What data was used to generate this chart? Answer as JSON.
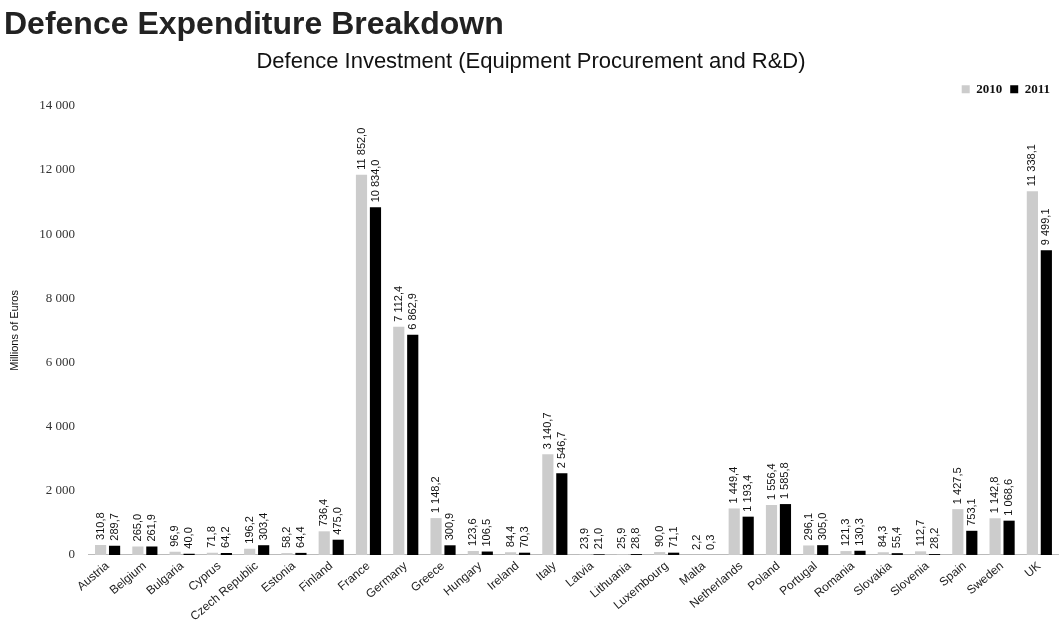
{
  "chart_data": {
    "type": "bar",
    "title": "Defence Expenditure Breakdown",
    "subtitle": "Defence Investment (Equipment Procurement and R&D)",
    "ylabel": "Millions of Euros",
    "categories": [
      "Austria",
      "Belgium",
      "Bulgaria",
      "Cyprus",
      "Czech Republic",
      "Estonia",
      "Finland",
      "France",
      "Germany",
      "Greece",
      "Hungary",
      "Ireland",
      "Italy",
      "Latvia",
      "Lithuania",
      "Luxembourg",
      "Malta",
      "Netherlands",
      "Poland",
      "Portugal",
      "Romania",
      "Slovakia",
      "Slovenia",
      "Spain",
      "Sweden",
      "UK"
    ],
    "series": [
      {
        "name": "2010",
        "color": "#cccccc",
        "values": [
          310.8,
          265.0,
          96.9,
          71.8,
          196.2,
          58.2,
          736.4,
          11852.0,
          7112.4,
          1148.2,
          123.6,
          84.4,
          3140.7,
          23.9,
          25.9,
          90.0,
          2.2,
          1449.4,
          1556.4,
          296.1,
          121.3,
          84.3,
          112.7,
          1427.5,
          1142.8,
          11338.1
        ],
        "value_labels": [
          "310,8",
          "265,0",
          "96,9",
          "71,8",
          "196,2",
          "58,2",
          "736,4",
          "11 852,0",
          "7 112,4",
          "1 148,2",
          "123,6",
          "84,4",
          "3 140,7",
          "23,9",
          "25,9",
          "90,0",
          "2,2",
          "1 449,4",
          "1 556,4",
          "296,1",
          "121,3",
          "84,3",
          "112,7",
          "1 427,5",
          "1 142,8",
          "11 338,1"
        ]
      },
      {
        "name": "2011",
        "color": "#000000",
        "values": [
          289.7,
          261.9,
          40.0,
          64.2,
          303.4,
          64.4,
          475.0,
          10834.0,
          6862.9,
          300.9,
          106.5,
          70.3,
          2546.7,
          21.0,
          28.8,
          71.1,
          0.3,
          1193.4,
          1585.8,
          305.0,
          130.3,
          55.4,
          28.2,
          753.1,
          1068.6,
          9499.1
        ],
        "value_labels": [
          "289,7",
          "261,9",
          "40,0",
          "64,2",
          "303,4",
          "64,4",
          "475,0",
          "10 834,0",
          "6 862,9",
          "300,9",
          "106,5",
          "70,3",
          "2 546,7",
          "21,0",
          "28,8",
          "71,1",
          "0,3",
          "1 193,4",
          "1 585,8",
          "305,0",
          "130,3",
          "55,4",
          "28,2",
          "753,1",
          "1 068,6",
          "9 499,1"
        ]
      }
    ],
    "ylim": [
      0,
      14000
    ],
    "yticks": [
      0,
      {
        "value": 2000,
        "label": "2 000"
      },
      {
        "value": 4000,
        "label": "4 000"
      },
      {
        "value": 6000,
        "label": "6 000"
      },
      {
        "value": 8000,
        "label": "8 000"
      },
      {
        "value": 10000,
        "label": "10 000"
      },
      {
        "value": 12000,
        "label": "12 000"
      },
      {
        "value": 14000,
        "label": "14 000"
      }
    ],
    "legend": "top right"
  }
}
